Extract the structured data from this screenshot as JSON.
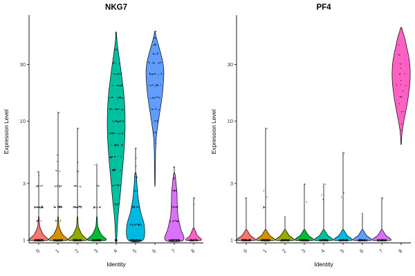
{
  "chart_data": [
    {
      "type": "violin",
      "title": "NKG7",
      "xlabel": "Identity",
      "ylabel": "Expression Level",
      "x_categories": [
        "0",
        "1",
        "2",
        "3",
        "4",
        "5",
        "6",
        "7",
        "8"
      ],
      "y_scale": "log",
      "y_ticks": [
        1,
        3,
        10,
        30
      ],
      "y_range": [
        0.95,
        70
      ],
      "grid": false,
      "legend": "none",
      "violins": [
        {
          "category": "0",
          "color": "#F8766D",
          "body": [
            [
              1,
              1
            ],
            [
              1.12,
              0.5
            ],
            [
              1.3,
              0.12
            ],
            [
              1.55,
              0.04
            ]
          ],
          "tail_max": 3.8,
          "point_bands": [
            [
              1,
              90,
              0.52
            ],
            [
              1.45,
              6,
              0.3
            ],
            [
              1.9,
              26,
              0.48
            ],
            [
              2.85,
              9,
              0.42
            ]
          ],
          "points": [
            3.75,
            3.5
          ]
        },
        {
          "category": "1",
          "color": "#D39200",
          "body": [
            [
              1,
              1
            ],
            [
              1.12,
              0.5
            ],
            [
              1.3,
              0.12
            ],
            [
              1.55,
              0.04
            ]
          ],
          "tail_max": 12,
          "point_bands": [
            [
              1,
              95,
              0.52
            ],
            [
              1.45,
              7,
              0.3
            ],
            [
              1.9,
              30,
              0.48
            ],
            [
              2.85,
              10,
              0.4
            ],
            [
              3.8,
              4,
              0.25
            ]
          ],
          "points": [
            11.8,
            5.2,
            4.6
          ]
        },
        {
          "category": "2",
          "color": "#93AA00",
          "body": [
            [
              1,
              1
            ],
            [
              1.12,
              0.5
            ],
            [
              1.3,
              0.12
            ],
            [
              1.55,
              0.04
            ]
          ],
          "tail_max": 8.8,
          "point_bands": [
            [
              1,
              85,
              0.5
            ],
            [
              1.9,
              24,
              0.45
            ],
            [
              2.85,
              8,
              0.38
            ],
            [
              3.8,
              3,
              0.2
            ]
          ],
          "points": [
            8.7,
            4.5
          ]
        },
        {
          "category": "3",
          "color": "#00BA38",
          "body": [
            [
              1,
              1
            ],
            [
              1.12,
              0.5
            ],
            [
              1.3,
              0.12
            ],
            [
              1.55,
              0.04
            ]
          ],
          "tail_max": 4.4,
          "point_bands": [
            [
              1,
              80,
              0.5
            ],
            [
              1.9,
              14,
              0.4
            ],
            [
              2.85,
              4,
              0.25
            ]
          ],
          "points": [
            4.3
          ]
        },
        {
          "category": "4",
          "color": "#00C19F",
          "body": [
            [
              1,
              0.05
            ],
            [
              1.5,
              0.18
            ],
            [
              2.2,
              0.4
            ],
            [
              3.2,
              0.6
            ],
            [
              4.5,
              0.78
            ],
            [
              6.5,
              0.93
            ],
            [
              9,
              1
            ],
            [
              13,
              0.96
            ],
            [
              18,
              0.82
            ],
            [
              24,
              0.62
            ],
            [
              30,
              0.44
            ],
            [
              38,
              0.25
            ],
            [
              46,
              0.11
            ],
            [
              52,
              0.05
            ],
            [
              56,
              0.02
            ]
          ],
          "point_bands": [
            [
              1,
              16,
              0.15
            ],
            [
              2,
              8,
              0.3
            ],
            [
              2.9,
              10,
              0.5
            ],
            [
              3.9,
              12,
              0.6
            ],
            [
              5,
              13,
              0.7
            ],
            [
              6.3,
              14,
              0.75
            ],
            [
              7.9,
              15,
              0.8
            ],
            [
              10,
              16,
              0.82
            ],
            [
              12.6,
              15,
              0.8
            ],
            [
              15.8,
              13,
              0.75
            ],
            [
              20,
              12,
              0.65
            ],
            [
              25,
              9,
              0.55
            ],
            [
              31,
              6,
              0.4
            ],
            [
              40,
              4,
              0.25
            ],
            [
              50,
              2,
              0.1
            ]
          ],
          "points": [
            55,
            52.5
          ]
        },
        {
          "category": "5",
          "color": "#00B9E3",
          "body": [
            [
              1,
              0.8
            ],
            [
              1.3,
              1
            ],
            [
              1.7,
              0.6
            ],
            [
              2.2,
              0.32
            ],
            [
              2.9,
              0.16
            ],
            [
              3.6,
              0.08
            ]
          ],
          "tail_max": 6,
          "point_bands": [
            [
              1,
              70,
              0.6
            ],
            [
              1.35,
              22,
              0.7
            ],
            [
              1.9,
              14,
              0.45
            ],
            [
              2.6,
              7,
              0.3
            ],
            [
              3.4,
              4,
              0.18
            ]
          ],
          "points": [
            5.9,
            4.9,
            4.2
          ]
        },
        {
          "category": "6",
          "color": "#619CFF",
          "body": [
            [
              3,
              0.02
            ],
            [
              5,
              0.06
            ],
            [
              7,
              0.13
            ],
            [
              9,
              0.3
            ],
            [
              12,
              0.55
            ],
            [
              16,
              0.8
            ],
            [
              21,
              0.95
            ],
            [
              26,
              1
            ],
            [
              31,
              0.9
            ],
            [
              37,
              0.66
            ],
            [
              43,
              0.42
            ],
            [
              49,
              0.2
            ],
            [
              54,
              0.08
            ],
            [
              57,
              0.02
            ]
          ],
          "point_bands": [
            [
              8,
              3,
              0.2
            ],
            [
              10,
              5,
              0.35
            ],
            [
              12.6,
              7,
              0.5
            ],
            [
              15.8,
              9,
              0.65
            ],
            [
              20,
              12,
              0.75
            ],
            [
              25,
              13,
              0.8
            ],
            [
              31,
              11,
              0.72
            ],
            [
              37,
              8,
              0.55
            ],
            [
              44,
              5,
              0.35
            ],
            [
              50,
              3,
              0.18
            ]
          ],
          "points": [
            57,
            6.5
          ]
        },
        {
          "category": "7",
          "color": "#DB72FB",
          "body": [
            [
              1,
              1
            ],
            [
              1.25,
              0.72
            ],
            [
              1.6,
              0.42
            ],
            [
              2,
              0.33
            ],
            [
              2.5,
              0.3
            ],
            [
              3,
              0.2
            ],
            [
              3.6,
              0.08
            ]
          ],
          "tail_max": 4.2,
          "point_bands": [
            [
              1,
              60,
              0.6
            ],
            [
              1.45,
              14,
              0.5
            ],
            [
              1.9,
              10,
              0.4
            ],
            [
              2.6,
              6,
              0.3
            ],
            [
              3.3,
              3,
              0.18
            ]
          ],
          "points": [
            4.1
          ]
        },
        {
          "category": "8",
          "color": "#FF61C3",
          "body": [
            [
              1,
              0.85
            ],
            [
              1.1,
              0.4
            ],
            [
              1.25,
              0.08
            ]
          ],
          "tail_max": 2.3,
          "point_bands": [
            [
              1,
              45,
              0.45
            ]
          ],
          "points": [
            2.25,
            2
          ]
        }
      ]
    },
    {
      "type": "violin",
      "title": "PF4",
      "xlabel": "Identity",
      "ylabel": "Expression Level",
      "x_categories": [
        "0",
        "1",
        "2",
        "3",
        "4",
        "5",
        "6",
        "7",
        "8"
      ],
      "y_scale": "log",
      "y_ticks": [
        1,
        3,
        10,
        30
      ],
      "y_range": [
        0.95,
        70
      ],
      "grid": false,
      "legend": "none",
      "violins": [
        {
          "category": "0",
          "color": "#F8766D",
          "body": [
            [
              1,
              1
            ],
            [
              1.1,
              0.45
            ],
            [
              1.22,
              0.08
            ]
          ],
          "tail_max": 2.3,
          "point_bands": [
            [
              1,
              95,
              0.52
            ]
          ],
          "points": [
            2.25
          ]
        },
        {
          "category": "1",
          "color": "#D39200",
          "body": [
            [
              1,
              1
            ],
            [
              1.1,
              0.45
            ],
            [
              1.22,
              0.08
            ]
          ],
          "tail_max": 8.8,
          "point_bands": [
            [
              1,
              100,
              0.52
            ],
            [
              1.9,
              5,
              0.25
            ]
          ],
          "points": [
            8.7,
            2.6,
            2.3
          ]
        },
        {
          "category": "2",
          "color": "#93AA00",
          "body": [
            [
              1,
              1
            ],
            [
              1.1,
              0.45
            ],
            [
              1.22,
              0.08
            ]
          ],
          "tail_max": 1.6,
          "point_bands": [
            [
              1,
              85,
              0.5
            ]
          ],
          "points": []
        },
        {
          "category": "3",
          "color": "#00BA38",
          "body": [
            [
              1,
              1
            ],
            [
              1.1,
              0.45
            ],
            [
              1.22,
              0.08
            ]
          ],
          "tail_max": 3,
          "point_bands": [
            [
              1,
              85,
              0.5
            ]
          ],
          "points": [
            2.95,
            2.1
          ]
        },
        {
          "category": "4",
          "color": "#00C19F",
          "body": [
            [
              1,
              1
            ],
            [
              1.1,
              0.45
            ],
            [
              1.22,
              0.08
            ]
          ],
          "tail_max": 3,
          "point_bands": [
            [
              1,
              80,
              0.5
            ]
          ],
          "points": [
            2.95,
            2.4,
            2.2
          ]
        },
        {
          "category": "5",
          "color": "#00B9E3",
          "body": [
            [
              1,
              1
            ],
            [
              1.1,
              0.45
            ],
            [
              1.22,
              0.08
            ]
          ],
          "tail_max": 5.5,
          "point_bands": [
            [
              1,
              85,
              0.5
            ]
          ],
          "points": [
            5.4,
            2.5,
            2.3
          ]
        },
        {
          "category": "6",
          "color": "#619CFF",
          "body": [
            [
              1,
              1
            ],
            [
              1.1,
              0.45
            ],
            [
              1.22,
              0.08
            ]
          ],
          "tail_max": 1.7,
          "point_bands": [
            [
              1,
              80,
              0.5
            ]
          ],
          "points": []
        },
        {
          "category": "7",
          "color": "#DB72FB",
          "body": [
            [
              1,
              1
            ],
            [
              1.1,
              0.45
            ],
            [
              1.22,
              0.08
            ]
          ],
          "tail_max": 2.3,
          "point_bands": [
            [
              1,
              90,
              0.52
            ]
          ],
          "points": [
            2.25
          ]
        },
        {
          "category": "8",
          "color": "#FF61C3",
          "body": [
            [
              6.5,
              0.02
            ],
            [
              8,
              0.1
            ],
            [
              10,
              0.3
            ],
            [
              13,
              0.6
            ],
            [
              17,
              0.85
            ],
            [
              22,
              1
            ],
            [
              28,
              1
            ],
            [
              35,
              0.85
            ],
            [
              42,
              0.62
            ],
            [
              50,
              0.4
            ],
            [
              56,
              0.2
            ],
            [
              61,
              0.06
            ]
          ],
          "point_bands": [
            [
              12,
              2,
              0.3
            ],
            [
              16,
              3,
              0.5
            ],
            [
              20,
              3,
              0.6
            ],
            [
              25,
              3,
              0.55
            ],
            [
              30,
              2,
              0.5
            ],
            [
              36,
              2,
              0.3
            ]
          ],
          "points": [
            8.5,
            9.5,
            44,
            14,
            18,
            22,
            28
          ]
        }
      ]
    }
  ]
}
